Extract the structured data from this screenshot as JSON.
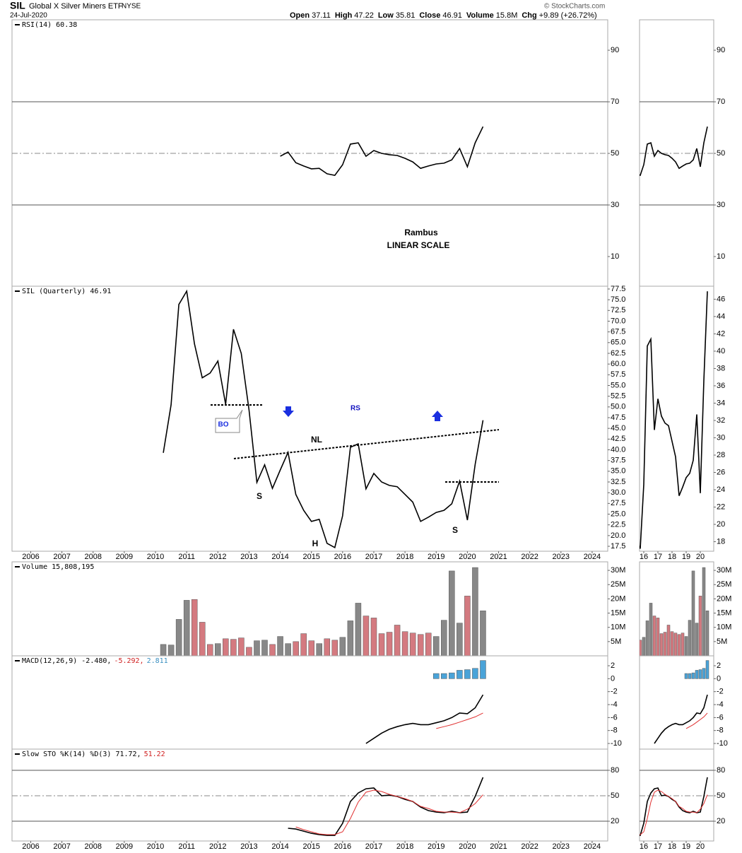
{
  "header": {
    "symbol": "SIL",
    "name": "Global X Silver Miners ETF",
    "exchange": "NYSE",
    "date": "24-Jul-2020",
    "copyright": "© StockCharts.com",
    "quote": [
      {
        "label": "Open",
        "value": "37.11"
      },
      {
        "label": "High",
        "value": "47.22"
      },
      {
        "label": "Low",
        "value": "35.81"
      },
      {
        "label": "Close",
        "value": "46.91"
      },
      {
        "label": "Volume",
        "value": "15.8M"
      },
      {
        "label": "Chg",
        "value": "+9.89 (+26.72%)"
      }
    ]
  },
  "annotations": {
    "author": "Rambus",
    "scale": "LINEAR SCALE",
    "nl": "NL",
    "rs": "RS",
    "ls": "S",
    "h": "H",
    "rs2": "S",
    "bo": "BO"
  },
  "chart_data": {
    "type": "stock",
    "x": [
      2010.25,
      2010.5,
      2010.75,
      2011,
      2011.25,
      2011.5,
      2011.75,
      2012,
      2012.25,
      2012.5,
      2012.75,
      2013,
      2013.25,
      2013.5,
      2013.75,
      2014,
      2014.25,
      2014.5,
      2014.75,
      2015,
      2015.25,
      2015.5,
      2015.75,
      2016,
      2016.25,
      2016.5,
      2016.75,
      2017,
      2017.25,
      2017.5,
      2017.75,
      2018,
      2018.25,
      2018.5,
      2018.75,
      2019,
      2019.25,
      2019.5,
      2019.75,
      2020,
      2020.25,
      2020.5
    ],
    "xlim": [
      2005.4,
      2024.5
    ],
    "xticks": [
      2006,
      2007,
      2008,
      2009,
      2010,
      2011,
      2012,
      2013,
      2014,
      2015,
      2016,
      2017,
      2018,
      2019,
      2020,
      2021,
      2022,
      2023,
      2024
    ],
    "side": {
      "xlim": [
        2015.7,
        2020.95
      ],
      "xticks": [
        {
          "value": 2016,
          "label": "16"
        },
        {
          "value": 2017,
          "label": "17"
        },
        {
          "value": 2018,
          "label": "18"
        },
        {
          "value": 2019,
          "label": "19"
        },
        {
          "value": 2020,
          "label": "20"
        }
      ],
      "price_ylim": [
        16.9,
        47.5
      ],
      "price_yticks": [
        18,
        20,
        22,
        24,
        26,
        28,
        30,
        32,
        34,
        36,
        38,
        40,
        42,
        44,
        46
      ]
    },
    "panels": [
      {
        "type": "line",
        "legend": [
          {
            "text": "RSI(14) 60.38",
            "color": "#000000"
          }
        ],
        "ylim": [
          -1.5,
          101.8
        ],
        "yticks": [
          10,
          30,
          50,
          70,
          90
        ],
        "ref_lines": [
          {
            "value": 30,
            "style": "solid"
          },
          {
            "value": 50,
            "style": "dashdot"
          },
          {
            "value": 70,
            "style": "solid"
          }
        ],
        "series": [
          {
            "color": "#000000",
            "values": [
              null,
              null,
              null,
              null,
              null,
              null,
              null,
              null,
              null,
              null,
              null,
              null,
              null,
              null,
              null,
              48.9,
              50.5,
              46.4,
              45.1,
              44.0,
              44.2,
              42.1,
              41.5,
              45.6,
              53.6,
              54.1,
              48.9,
              51.1,
              50,
              49.5,
              49.2,
              48.1,
              46.7,
              44.2,
              45.1,
              45.9,
              46.2,
              47.5,
              51.9,
              44.8,
              54.1,
              60.38
            ]
          }
        ]
      },
      {
        "type": "line",
        "legend": [
          {
            "text": "SIL (Quarterly) 46.91",
            "color": "#000000"
          }
        ],
        "ylim": [
          16.35,
          78.15
        ],
        "yticks": [
          {
            "value": 17.5,
            "label": "17.5"
          },
          {
            "value": 20,
            "label": "20.0"
          },
          22.5,
          {
            "value": 25,
            "label": "25.0"
          },
          27.5,
          {
            "value": 30,
            "label": "30.0"
          },
          32.5,
          {
            "value": 35,
            "label": "35.0"
          },
          37.5,
          {
            "value": 40,
            "label": "40.0"
          },
          42.5,
          {
            "value": 45,
            "label": "45.0"
          },
          47.5,
          {
            "value": 50,
            "label": "50.0"
          },
          52.5,
          {
            "value": 55,
            "label": "55.0"
          },
          57.5,
          {
            "value": 60,
            "label": "60.0"
          },
          62.5,
          {
            "value": 65,
            "label": "65.0"
          },
          67.5,
          {
            "value": 70,
            "label": "70.0"
          },
          72.5,
          {
            "value": 75,
            "label": "75.0"
          },
          77.5
        ],
        "series": [
          {
            "color": "#000000",
            "values": [
              39.3,
              50.5,
              73.9,
              77.0,
              64.7,
              56.8,
              57.9,
              60.7,
              50.6,
              68.1,
              62.5,
              49.3,
              32.4,
              36.5,
              31.0,
              35.3,
              39.4,
              29.6,
              25.9,
              23.3,
              23.8,
              18.2,
              17.2,
              24.6,
              40.6,
              41.4,
              30.9,
              34.5,
              32.5,
              31.7,
              31.4,
              29.6,
              27.8,
              23.3,
              24.3,
              25.4,
              25.9,
              27.4,
              32.7,
              23.6,
              36.6,
              46.91
            ]
          }
        ]
      },
      {
        "type": "bar",
        "legend": [
          {
            "text": "Volume 15,808,195",
            "color": "#000000"
          }
        ],
        "ylim": [
          0,
          33000000
        ],
        "yticks": [
          {
            "value": 5000000,
            "label": "5M"
          },
          {
            "value": 10000000,
            "label": "10M"
          },
          {
            "value": 15000000,
            "label": "15M"
          },
          {
            "value": 20000000,
            "label": "20M"
          },
          {
            "value": 25000000,
            "label": "25M"
          },
          {
            "value": 30000000,
            "label": "30M"
          }
        ],
        "values": [
          4000000,
          3800000,
          12800000,
          19500000,
          19800000,
          11800000,
          4000000,
          4300000,
          6000000,
          5800000,
          6300000,
          3000000,
          5300000,
          5500000,
          4000000,
          6800000,
          4300000,
          5000000,
          7800000,
          5300000,
          4300000,
          6000000,
          5500000,
          6500000,
          12300000,
          18500000,
          14000000,
          13300000,
          7800000,
          8300000,
          10800000,
          8500000,
          8000000,
          7500000,
          8000000,
          6800000,
          12500000,
          29800000,
          11500000,
          21000000,
          31000000,
          15808195
        ],
        "colors": [
          "#888888",
          "#888888",
          "#888888",
          "#888888",
          "#d47a80",
          "#d47a80",
          "#d47a80",
          "#888888",
          "#d47a80",
          "#d47a80",
          "#d47a80",
          "#d47a80",
          "#888888",
          "#888888",
          "#d47a80",
          "#888888",
          "#888888",
          "#d47a80",
          "#d47a80",
          "#d47a80",
          "#888888",
          "#d47a80",
          "#d47a80",
          "#888888",
          "#888888",
          "#888888",
          "#d47a80",
          "#d47a80",
          "#d47a80",
          "#d47a80",
          "#d47a80",
          "#d47a80",
          "#d47a80",
          "#d47a80",
          "#d47a80",
          "#888888",
          "#888888",
          "#888888",
          "#888888",
          "#d47a80",
          "#888888",
          "#888888"
        ]
      },
      {
        "type": "macd",
        "legend": [
          {
            "text": "MACD(12,26,9) -2.480,",
            "color": "#000000"
          },
          {
            "text": "-5.292,",
            "color": "#d02020"
          },
          {
            "text": "2.811",
            "color": "#3a8fc0"
          }
        ],
        "ylim": [
          -10.87,
          3.53
        ],
        "yticks": [
          -10,
          -8,
          -6,
          -4,
          -2,
          0,
          2
        ],
        "series": [
          {
            "color": "#000000",
            "values": [
              null,
              null,
              null,
              null,
              null,
              null,
              null,
              null,
              null,
              null,
              null,
              null,
              null,
              null,
              null,
              null,
              null,
              null,
              null,
              null,
              null,
              null,
              null,
              null,
              null,
              null,
              -10,
              -9.2,
              -8.4,
              -7.8,
              -7.4,
              -7.1,
              -6.9,
              -7.1,
              -7.1,
              -6.8,
              -6.5,
              -6.0,
              -5.3,
              -5.4,
              -4.5,
              -2.48
            ]
          },
          {
            "color": "#e03030",
            "values": [
              null,
              null,
              null,
              null,
              null,
              null,
              null,
              null,
              null,
              null,
              null,
              null,
              null,
              null,
              null,
              null,
              null,
              null,
              null,
              null,
              null,
              null,
              null,
              null,
              null,
              null,
              null,
              null,
              null,
              null,
              null,
              null,
              null,
              null,
              null,
              -7.7,
              -7.4,
              -7.1,
              -6.7,
              -6.3,
              -5.9,
              -5.292
            ]
          }
        ],
        "histogram": {
          "color": "#4aa3d8",
          "values": [
            null,
            null,
            null,
            null,
            null,
            null,
            null,
            null,
            null,
            null,
            null,
            null,
            null,
            null,
            null,
            null,
            null,
            null,
            null,
            null,
            null,
            null,
            null,
            null,
            null,
            null,
            null,
            null,
            null,
            null,
            null,
            null,
            null,
            null,
            null,
            0.8,
            0.8,
            0.9,
            1.3,
            1.4,
            1.6,
            2.811
          ]
        }
      },
      {
        "type": "line",
        "legend": [
          {
            "text": "Slow STO %K(14) %D(3) 71.72,",
            "color": "#000000"
          },
          {
            "text": "51.22",
            "color": "#d02020"
          }
        ],
        "ylim": [
          -3.3,
          105
        ],
        "yticks": [
          20,
          50,
          80
        ],
        "ref_lines": [
          {
            "value": 20,
            "style": "solid"
          },
          {
            "value": 50,
            "style": "dashdot"
          },
          {
            "value": 80,
            "style": "solid"
          }
        ],
        "series": [
          {
            "color": "#000000",
            "values": [
              null,
              null,
              null,
              null,
              null,
              null,
              null,
              null,
              null,
              null,
              null,
              null,
              null,
              null,
              null,
              null,
              11.7,
              10.8,
              8.3,
              5.8,
              4.2,
              3.3,
              3.3,
              17.5,
              43.3,
              53.3,
              58.3,
              59.2,
              50,
              50.8,
              49.2,
              45.8,
              43.3,
              36.7,
              32.5,
              30.8,
              30,
              31.7,
              30,
              30.8,
              49.2,
              71.72
            ]
          },
          {
            "color": "#e03030",
            "values": [
              null,
              null,
              null,
              null,
              null,
              null,
              null,
              null,
              null,
              null,
              null,
              null,
              null,
              null,
              null,
              null,
              null,
              13.3,
              10,
              7.5,
              5,
              4.2,
              4.2,
              7.5,
              23.3,
              42.5,
              54.2,
              56.7,
              55,
              51.7,
              49.2,
              46.7,
              43.3,
              37.5,
              35,
              31.7,
              30.8,
              30.8,
              30,
              34.2,
              40.8,
              51.22
            ]
          }
        ]
      }
    ]
  }
}
